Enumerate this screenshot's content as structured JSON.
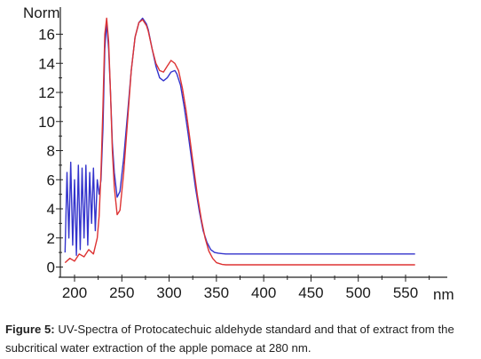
{
  "chart_data": {
    "type": "line",
    "title": "",
    "xlabel": "nm",
    "ylabel": "Norm",
    "xlim": [
      190,
      560
    ],
    "ylim": [
      -1,
      18
    ],
    "x_ticks": [
      200,
      250,
      300,
      350,
      400,
      450,
      500,
      550
    ],
    "x_tick_labels": [
      "200",
      "250",
      "300",
      "350",
      "400",
      "450",
      "500",
      "550"
    ],
    "y_ticks": [
      0,
      2,
      4,
      6,
      8,
      10,
      12,
      14,
      16
    ],
    "y_tick_labels": [
      "0",
      "2",
      "4",
      "6",
      "8",
      "10",
      "12",
      "14",
      "16"
    ],
    "grid": false,
    "series": [
      {
        "color": "#3333cc",
        "x": [
          190,
          192,
          194,
          196,
          198,
          200,
          202,
          204,
          206,
          208,
          210,
          212,
          214,
          216,
          218,
          220,
          222,
          224,
          226,
          228,
          230,
          232,
          234,
          236,
          238,
          240,
          242,
          245,
          248,
          252,
          256,
          260,
          264,
          268,
          272,
          276,
          278,
          282,
          286,
          290,
          294,
          298,
          302,
          306,
          308,
          312,
          316,
          320,
          324,
          328,
          332,
          336,
          340,
          344,
          348,
          352,
          356,
          360,
          400,
          450,
          500,
          560
        ],
        "y": [
          1.0,
          6.5,
          2.0,
          7.2,
          1.5,
          6.0,
          0.8,
          7.0,
          1.2,
          6.8,
          2.0,
          7.0,
          1.5,
          6.5,
          3.0,
          6.8,
          2.5,
          6.0,
          5.0,
          6.0,
          9.5,
          15.0,
          16.8,
          15.0,
          12.0,
          8.5,
          6.5,
          4.8,
          5.2,
          7.5,
          10.5,
          13.5,
          15.8,
          16.8,
          17.1,
          16.7,
          16.3,
          15.0,
          13.8,
          13.0,
          12.8,
          13.0,
          13.4,
          13.5,
          13.3,
          12.5,
          11.0,
          9.2,
          7.3,
          5.4,
          3.8,
          2.5,
          1.7,
          1.2,
          1.0,
          0.95,
          0.92,
          0.9,
          0.9,
          0.9,
          0.9,
          0.9
        ]
      },
      {
        "color": "#dd3333",
        "x": [
          190,
          195,
          200,
          205,
          210,
          215,
          220,
          224,
          226,
          228,
          230,
          232,
          234,
          236,
          238,
          240,
          242,
          245,
          248,
          252,
          256,
          260,
          264,
          268,
          272,
          276,
          278,
          282,
          286,
          290,
          294,
          298,
          302,
          306,
          310,
          314,
          318,
          322,
          326,
          330,
          334,
          338,
          342,
          346,
          350,
          356,
          360,
          400,
          450,
          500,
          560
        ],
        "y": [
          0.3,
          0.6,
          0.4,
          0.9,
          0.7,
          1.2,
          0.9,
          2.0,
          3.5,
          6.5,
          11.0,
          16.0,
          17.1,
          15.5,
          12.0,
          8.0,
          5.5,
          3.6,
          3.9,
          6.5,
          10.0,
          13.5,
          15.8,
          16.8,
          17.0,
          16.6,
          16.2,
          15.0,
          14.0,
          13.5,
          13.4,
          13.8,
          14.2,
          14.0,
          13.5,
          12.3,
          10.7,
          8.8,
          6.8,
          4.9,
          3.3,
          2.0,
          1.1,
          0.6,
          0.3,
          0.18,
          0.15,
          0.15,
          0.15,
          0.15,
          0.15
        ]
      }
    ]
  },
  "caption": {
    "label": "Figure 5:",
    "text": " UV-Spectra of Protocatechuic aldehyde standard and that of extract from the subcritical water extraction of the apple pomace at 280 nm."
  }
}
